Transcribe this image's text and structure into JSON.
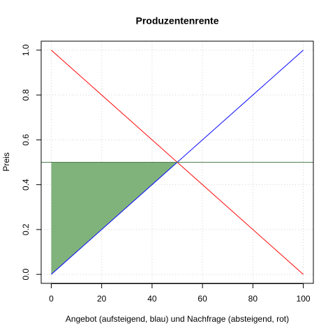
{
  "chart_data": {
    "type": "line",
    "title": "Produzentenrente",
    "x_label": "Angebot (aufsteigend, blau) und Nachfrage (absteigend, rot)",
    "y_label": "Preis",
    "xlim": [
      -4,
      104
    ],
    "ylim": [
      -0.04,
      1.04
    ],
    "xticks": [
      0,
      20,
      40,
      60,
      80,
      100
    ],
    "yticks": [
      {
        "value": 0,
        "label": "0.0"
      },
      0.2,
      0.4,
      0.6,
      0.8,
      {
        "value": 1,
        "label": "1.0"
      }
    ],
    "grid": true,
    "series": [
      {
        "color": "#0000ff",
        "x": [
          0,
          100
        ],
        "values": [
          0,
          1
        ]
      },
      {
        "color": "#ff0000",
        "x": [
          0,
          100
        ],
        "values": [
          1,
          0
        ]
      }
    ],
    "polygon": {
      "color": "#80b27c",
      "x": [
        0,
        50,
        0
      ],
      "values": [
        0,
        0.5,
        0.5
      ]
    },
    "hline": {
      "value": 0.5,
      "color": "#4f7f4f"
    }
  }
}
